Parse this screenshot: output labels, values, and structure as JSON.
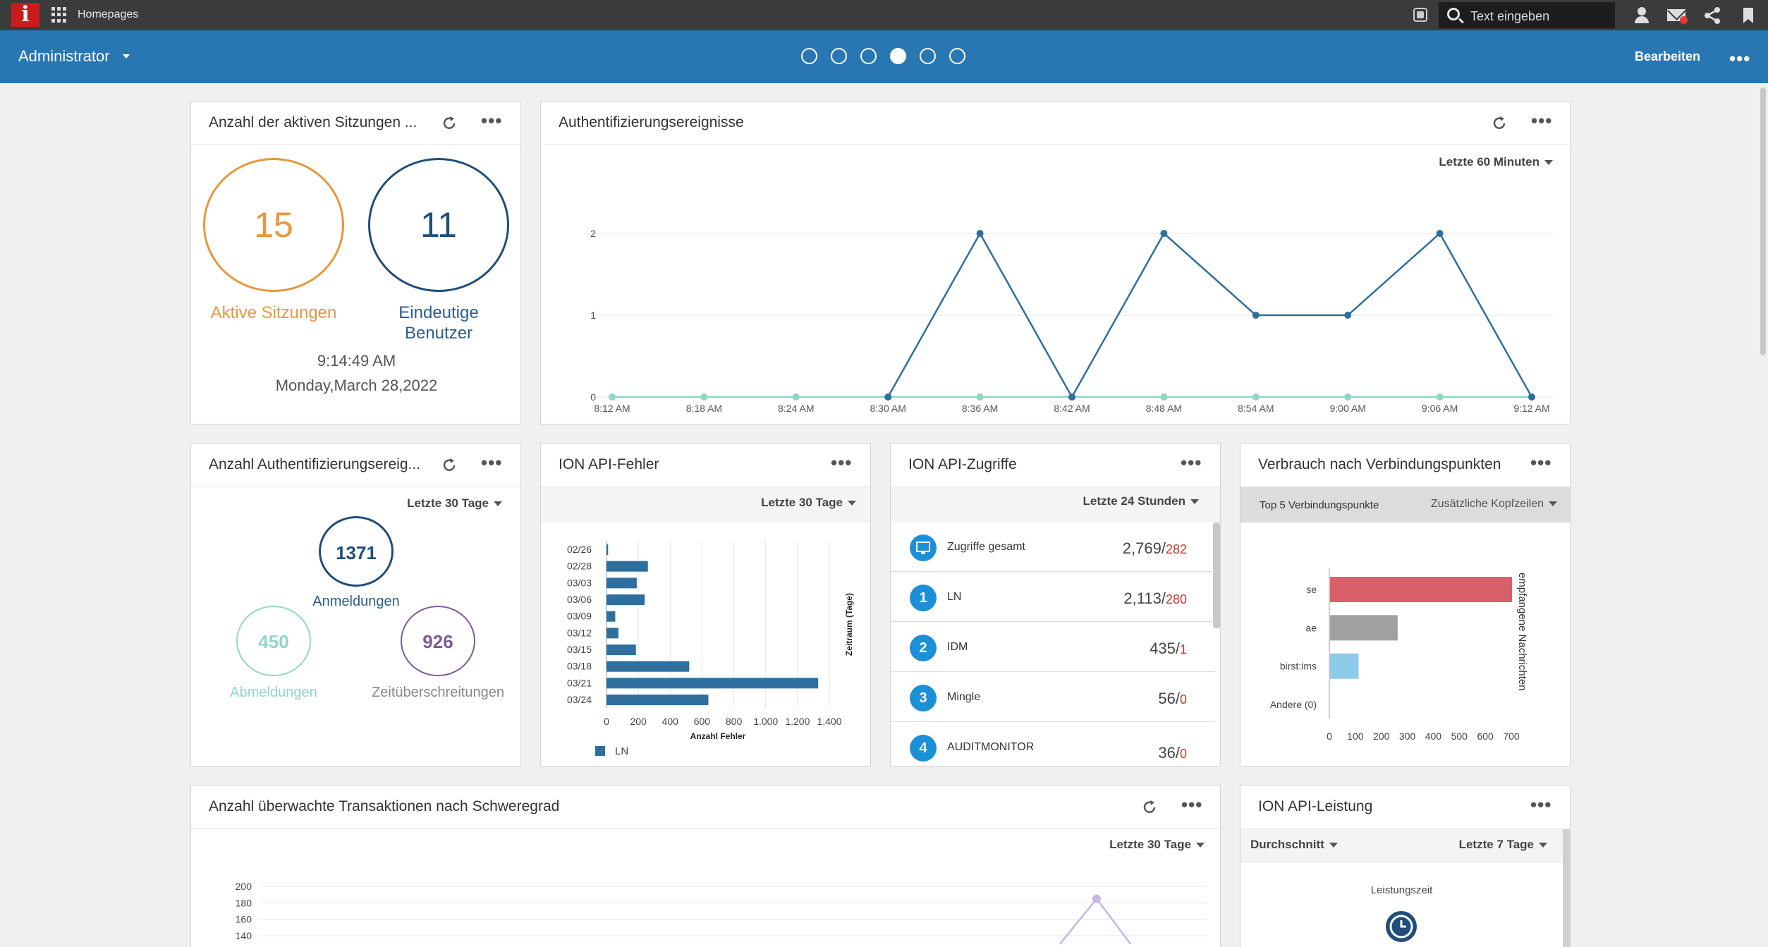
{
  "topbar": {
    "logo": "i",
    "title": "Homepages",
    "search_placeholder": "Text eingeben"
  },
  "bluebar": {
    "role": "Administrator",
    "edit_label": "Bearbeiten",
    "more": "•••",
    "pages": [
      false,
      false,
      false,
      true,
      false,
      false
    ]
  },
  "sessions": {
    "title": "Anzahl der aktiven Sitzungen ...",
    "active_value": "15",
    "active_label": "Aktive Sitzungen",
    "unique_value": "11",
    "unique_label_1": "Eindeutige",
    "unique_label_2": "Benutzer",
    "time": "9:14:49 AM",
    "date": "Monday,March 28,2022",
    "colors": {
      "active": "#e8973a",
      "unique": "#1f4e79"
    }
  },
  "auth_events": {
    "title": "Authentifizierungsereignisse",
    "filter": "Letzte 60 Minuten",
    "chart_data": {
      "type": "line",
      "x": [
        "8:12 AM",
        "8:18 AM",
        "8:24 AM",
        "8:30 AM",
        "8:36 AM",
        "8:42 AM",
        "8:48 AM",
        "8:54 AM",
        "9:00 AM",
        "9:06 AM",
        "9:12 AM"
      ],
      "ylim": [
        0,
        2
      ],
      "yticks": [
        0,
        1,
        2
      ],
      "series": [
        {
          "name": "Anmeldungen",
          "color": "#2e6f9e",
          "values": [
            null,
            null,
            null,
            0,
            2,
            0,
            2,
            1,
            1,
            2,
            0
          ]
        },
        {
          "name": "Abmeldungen",
          "color": "#8fd9c4",
          "values": [
            0,
            0,
            0,
            0,
            0,
            0,
            0,
            0,
            0,
            0,
            0
          ]
        },
        {
          "name": "Zeitüberschreitungen",
          "color": "#c6b7e2",
          "values": [
            0,
            0,
            0,
            0,
            0,
            0,
            0,
            0,
            0,
            0,
            0
          ]
        }
      ],
      "legend": "bottom-left"
    }
  },
  "auth_counts": {
    "title": "Anzahl Authentifizierungsereig...",
    "filter": "Letzte 30 Tage",
    "logins_value": "1371",
    "logins_label": "Anmeldungen",
    "logouts_value": "450",
    "logouts_label": "Abmeldungen",
    "timeouts_value": "926",
    "timeouts_label": "Zeitüberschreitungen",
    "colors": {
      "logins": "#1f4e79",
      "logouts": "#8fd9c4",
      "timeouts": "#7d5c9a"
    }
  },
  "api_errors": {
    "title": "ION API-Fehler",
    "filter": "Letzte 30 Tage",
    "chart_data": {
      "type": "bar",
      "orientation": "horizontal",
      "categories": [
        "02/26",
        "02/28",
        "03/03",
        "03/06",
        "03/09",
        "03/12",
        "03/15",
        "03/18",
        "03/21",
        "03/24"
      ],
      "values": [
        10,
        260,
        190,
        240,
        55,
        75,
        185,
        520,
        1330,
        640
      ],
      "xlim": [
        0,
        1400
      ],
      "xticks": [
        "0",
        "200",
        "400",
        "600",
        "800",
        "1.000",
        "1.200",
        "1.400"
      ],
      "xlabel": "Anzahl Fehler",
      "ylabel": "Zeitraum (Tage)",
      "series_name": "LN",
      "color": "#2e6f9e"
    }
  },
  "api_access": {
    "title": "ION API-Zugriffe",
    "filter": "Letzte 24 Stunden",
    "rows": [
      {
        "badge": "",
        "name": "Zugriffe gesamt",
        "value": "2,769/",
        "errors": "282"
      },
      {
        "badge": "1",
        "name": "LN",
        "value": "2,113/",
        "errors": "280"
      },
      {
        "badge": "2",
        "name": "IDM",
        "value": "435/",
        "errors": "1"
      },
      {
        "badge": "3",
        "name": "Mingle",
        "value": "56/",
        "errors": "0"
      },
      {
        "badge": "4",
        "name": "AUDITMONITOR",
        "value": "36/",
        "errors": "0"
      }
    ]
  },
  "usage": {
    "title": "Verbrauch nach Verbindungspunkten",
    "subheader": "Top 5 Verbindungspunkte",
    "extra": "Zusätzliche Kopfzeilen",
    "chart_data": {
      "type": "bar",
      "orientation": "horizontal",
      "categories": [
        "se",
        "ae",
        "birst:ims",
        "Andere (0)"
      ],
      "values": [
        700,
        260,
        110,
        0
      ],
      "colors": [
        "#d9606a",
        "#a0a0a0",
        "#8ecbeb",
        "#cccccc"
      ],
      "xlim": [
        0,
        700
      ],
      "xticks": [
        "0",
        "100",
        "200",
        "300",
        "400",
        "500",
        "600",
        "700"
      ],
      "ylabel": "empfangene Nachrichten"
    }
  },
  "monitored": {
    "title": "Anzahl überwachte Transaktionen nach Schweregrad",
    "filter": "Letzte 30 Tage",
    "chart_data": {
      "type": "line",
      "yticks": [
        140,
        160,
        180,
        200
      ],
      "visible_peak": 185
    }
  },
  "api_perf": {
    "title": "ION API-Leistung",
    "metric": "Durchschnitt",
    "filter": "Letzte 7 Tage",
    "label": "Leistungszeit"
  }
}
